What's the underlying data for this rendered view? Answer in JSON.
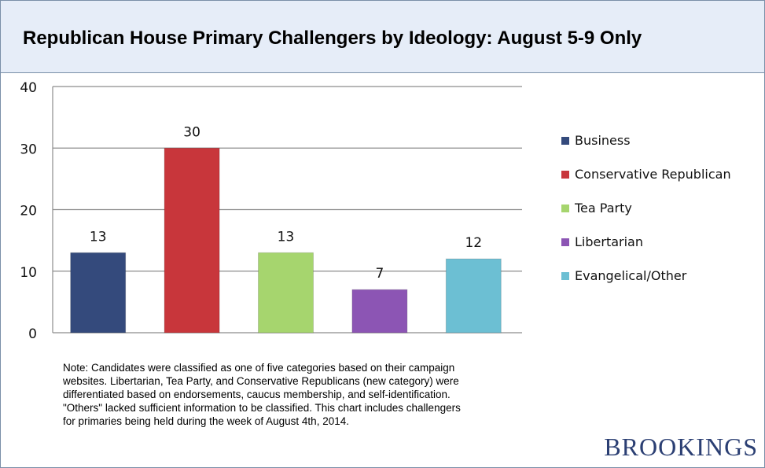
{
  "header": {
    "title": "Republican House Primary Challengers by Ideology: August 5-9 Only"
  },
  "chart_data": {
    "type": "bar",
    "title": "Republican House Primary Challengers by Ideology: August 5-9 Only",
    "categories": [
      "Business",
      "Conservative Republican",
      "Tea Party",
      "Libertarian",
      "Evangelical/Other"
    ],
    "values": [
      13,
      30,
      13,
      7,
      12
    ],
    "colors": [
      "#344a7c",
      "#c8363b",
      "#a6d56e",
      "#8c55b4",
      "#6cbfd3"
    ],
    "ylim": [
      0,
      40
    ],
    "yticks": [
      0,
      10,
      20,
      30,
      40
    ],
    "xlabel": "",
    "ylabel": "",
    "grid": true,
    "legend_position": "right"
  },
  "note": {
    "lines": [
      "Note: Candidates were classified as one of five categories based on their campaign",
      "websites. Libertarian, Tea Party, and Conservative Republicans (new category) were",
      "differentiated based on endorsements, caucus membership, and self-identification.",
      "\"Others\" lacked sufficient information to be classified.  This chart includes challengers",
      "for primaries being held during the week of August 4th, 2014."
    ]
  },
  "brand": {
    "name": "BROOKINGS"
  }
}
